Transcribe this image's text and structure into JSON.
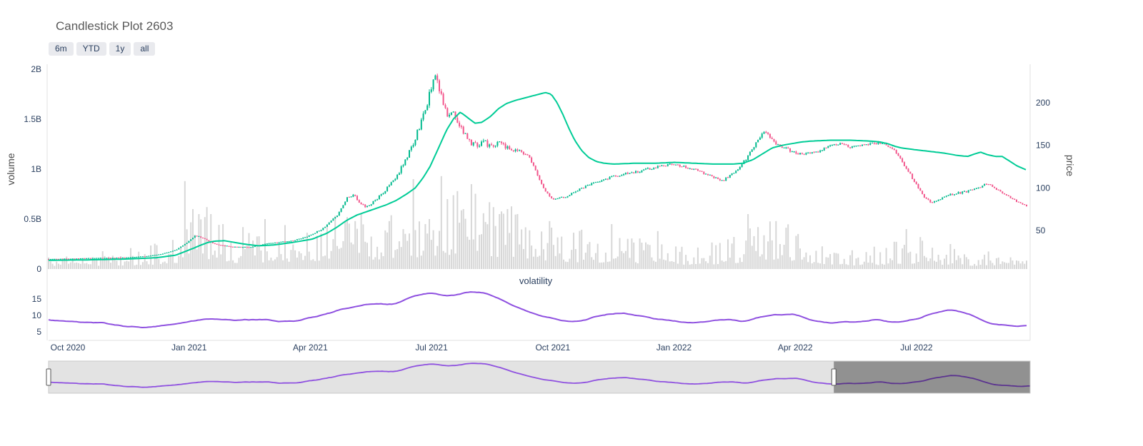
{
  "title": "Candlestick Plot 2603",
  "range_buttons": [
    {
      "label": "6m"
    },
    {
      "label": "YTD"
    },
    {
      "label": "1y"
    },
    {
      "label": "all"
    }
  ],
  "rangeslider": {
    "mask_from_t": 0.8,
    "handle_positions_t": [
      0,
      0.8
    ]
  },
  "chart_data": {
    "type": "candlestick",
    "title": "Candlestick Plot 2603",
    "x_ticks": [
      "Oct 2020",
      "Jan 2021",
      "Apr 2021",
      "Jul 2021",
      "Oct 2021",
      "Jan 2022",
      "Apr 2022",
      "Jul 2022"
    ],
    "volume_axis": {
      "label": "volume",
      "ticks": [
        "0",
        "0.5B",
        "1B",
        "1.5B",
        "2B"
      ],
      "values": [
        0,
        0.5,
        1,
        1.5,
        2
      ]
    },
    "price_axis": {
      "label": "price",
      "ticks": [
        "50",
        "100",
        "150",
        "200"
      ],
      "values": [
        50,
        100,
        150,
        200
      ]
    },
    "volatility_panel": {
      "title": "volatility",
      "ticks": [
        "5",
        "10",
        "15"
      ],
      "values": [
        5,
        10,
        15
      ],
      "range": [
        4,
        18
      ]
    },
    "series": {
      "candle_count": 489,
      "noise_seed": 11,
      "close_keypoints": [
        [
          0,
          16
        ],
        [
          0.02,
          16.5
        ],
        [
          0.04,
          17
        ],
        [
          0.06,
          17.5
        ],
        [
          0.08,
          18
        ],
        [
          0.1,
          19.5
        ],
        [
          0.115,
          22
        ],
        [
          0.13,
          27
        ],
        [
          0.142,
          36
        ],
        [
          0.15,
          44
        ],
        [
          0.158,
          41
        ],
        [
          0.168,
          35
        ],
        [
          0.178,
          32
        ],
        [
          0.19,
          30.5
        ],
        [
          0.205,
          30
        ],
        [
          0.22,
          34
        ],
        [
          0.235,
          36
        ],
        [
          0.25,
          38
        ],
        [
          0.265,
          43
        ],
        [
          0.28,
          52
        ],
        [
          0.295,
          68
        ],
        [
          0.305,
          88
        ],
        [
          0.312,
          92
        ],
        [
          0.318,
          82
        ],
        [
          0.325,
          78
        ],
        [
          0.335,
          86
        ],
        [
          0.345,
          98
        ],
        [
          0.355,
          112
        ],
        [
          0.365,
          132
        ],
        [
          0.375,
          158
        ],
        [
          0.385,
          192
        ],
        [
          0.392,
          220
        ],
        [
          0.396,
          230
        ],
        [
          0.401,
          212
        ],
        [
          0.405,
          196
        ],
        [
          0.409,
          184
        ],
        [
          0.414,
          190
        ],
        [
          0.421,
          172
        ],
        [
          0.428,
          158
        ],
        [
          0.435,
          150
        ],
        [
          0.443,
          154
        ],
        [
          0.452,
          150
        ],
        [
          0.462,
          152
        ],
        [
          0.472,
          146
        ],
        [
          0.482,
          143
        ],
        [
          0.49,
          138
        ],
        [
          0.498,
          120
        ],
        [
          0.506,
          100
        ],
        [
          0.515,
          86
        ],
        [
          0.522,
          88
        ],
        [
          0.53,
          90
        ],
        [
          0.54,
          97
        ],
        [
          0.55,
          102
        ],
        [
          0.562,
          108
        ],
        [
          0.575,
          112
        ],
        [
          0.59,
          117
        ],
        [
          0.605,
          120
        ],
        [
          0.62,
          124
        ],
        [
          0.635,
          127
        ],
        [
          0.65,
          125
        ],
        [
          0.662,
          121
        ],
        [
          0.672,
          116
        ],
        [
          0.682,
          112
        ],
        [
          0.688,
          108
        ],
        [
          0.695,
          113
        ],
        [
          0.703,
          120
        ],
        [
          0.712,
          132
        ],
        [
          0.722,
          150
        ],
        [
          0.729,
          164
        ],
        [
          0.733,
          168
        ],
        [
          0.738,
          158
        ],
        [
          0.744,
          150
        ],
        [
          0.75,
          148
        ],
        [
          0.76,
          143
        ],
        [
          0.77,
          139
        ],
        [
          0.78,
          141
        ],
        [
          0.79,
          144
        ],
        [
          0.8,
          150
        ],
        [
          0.81,
          152
        ],
        [
          0.82,
          148
        ],
        [
          0.83,
          150
        ],
        [
          0.84,
          151
        ],
        [
          0.85,
          153
        ],
        [
          0.858,
          150
        ],
        [
          0.865,
          144
        ],
        [
          0.872,
          132
        ],
        [
          0.88,
          118
        ],
        [
          0.888,
          102
        ],
        [
          0.895,
          90
        ],
        [
          0.902,
          83
        ],
        [
          0.91,
          86
        ],
        [
          0.92,
          92
        ],
        [
          0.93,
          94
        ],
        [
          0.94,
          96
        ],
        [
          0.95,
          99
        ],
        [
          0.957,
          104
        ],
        [
          0.963,
          103
        ],
        [
          0.97,
          98
        ],
        [
          0.977,
          93
        ],
        [
          0.984,
          88
        ],
        [
          0.99,
          84
        ],
        [
          1,
          79
        ]
      ],
      "ma_keypoints": [
        [
          0,
          15
        ],
        [
          0.04,
          15.5
        ],
        [
          0.08,
          16.5
        ],
        [
          0.11,
          18
        ],
        [
          0.13,
          21
        ],
        [
          0.15,
          30
        ],
        [
          0.156,
          33
        ],
        [
          0.163,
          36
        ],
        [
          0.17,
          37.5
        ],
        [
          0.18,
          38
        ],
        [
          0.19,
          36
        ],
        [
          0.2,
          34
        ],
        [
          0.215,
          32
        ],
        [
          0.23,
          33
        ],
        [
          0.25,
          36
        ],
        [
          0.27,
          40
        ],
        [
          0.285,
          47
        ],
        [
          0.295,
          54
        ],
        [
          0.305,
          62
        ],
        [
          0.315,
          68
        ],
        [
          0.325,
          72
        ],
        [
          0.335,
          76
        ],
        [
          0.345,
          80
        ],
        [
          0.355,
          85
        ],
        [
          0.365,
          92
        ],
        [
          0.375,
          100
        ],
        [
          0.383,
          112
        ],
        [
          0.39,
          125
        ],
        [
          0.398,
          145
        ],
        [
          0.407,
          168
        ],
        [
          0.414,
          181
        ],
        [
          0.421,
          189
        ],
        [
          0.428,
          183
        ],
        [
          0.436,
          176
        ],
        [
          0.443,
          177
        ],
        [
          0.452,
          184
        ],
        [
          0.46,
          193
        ],
        [
          0.468,
          199
        ],
        [
          0.478,
          203
        ],
        [
          0.488,
          206
        ],
        [
          0.498,
          209
        ],
        [
          0.508,
          212
        ],
        [
          0.514,
          210
        ],
        [
          0.52,
          200
        ],
        [
          0.526,
          186
        ],
        [
          0.532,
          170
        ],
        [
          0.538,
          156
        ],
        [
          0.545,
          144
        ],
        [
          0.552,
          136
        ],
        [
          0.56,
          131
        ],
        [
          0.568,
          129
        ],
        [
          0.578,
          128
        ],
        [
          0.6,
          129
        ],
        [
          0.62,
          129
        ],
        [
          0.64,
          130
        ],
        [
          0.66,
          129
        ],
        [
          0.68,
          128
        ],
        [
          0.7,
          128
        ],
        [
          0.71,
          129
        ],
        [
          0.72,
          133
        ],
        [
          0.73,
          140
        ],
        [
          0.74,
          147
        ],
        [
          0.75,
          150
        ],
        [
          0.76,
          152
        ],
        [
          0.77,
          154
        ],
        [
          0.78,
          155
        ],
        [
          0.8,
          156
        ],
        [
          0.82,
          156
        ],
        [
          0.84,
          155
        ],
        [
          0.85,
          154
        ],
        [
          0.858,
          152
        ],
        [
          0.865,
          149
        ],
        [
          0.872,
          147
        ],
        [
          0.885,
          145
        ],
        [
          0.9,
          143
        ],
        [
          0.915,
          141
        ],
        [
          0.93,
          138
        ],
        [
          0.94,
          137
        ],
        [
          0.947,
          140
        ],
        [
          0.953,
          142
        ],
        [
          0.96,
          139
        ],
        [
          0.968,
          137
        ],
        [
          0.975,
          137
        ],
        [
          0.982,
          132
        ],
        [
          0.99,
          126
        ],
        [
          1,
          121
        ]
      ],
      "volatility_keypoints": [
        [
          0,
          8.5
        ],
        [
          0.03,
          8.2
        ],
        [
          0.055,
          7.7
        ],
        [
          0.075,
          6.9
        ],
        [
          0.095,
          6.3
        ],
        [
          0.115,
          6.8
        ],
        [
          0.135,
          7.6
        ],
        [
          0.15,
          8.5
        ],
        [
          0.162,
          8.9
        ],
        [
          0.175,
          8.8
        ],
        [
          0.19,
          8.5
        ],
        [
          0.205,
          8.8
        ],
        [
          0.22,
          8.6
        ],
        [
          0.24,
          8.2
        ],
        [
          0.255,
          8.5
        ],
        [
          0.27,
          9.4
        ],
        [
          0.285,
          10.5
        ],
        [
          0.3,
          11.8
        ],
        [
          0.312,
          12.6
        ],
        [
          0.325,
          13.2
        ],
        [
          0.338,
          13.6
        ],
        [
          0.35,
          13.2
        ],
        [
          0.358,
          14
        ],
        [
          0.368,
          15.2
        ],
        [
          0.378,
          16.2
        ],
        [
          0.388,
          16.7
        ],
        [
          0.398,
          16.4
        ],
        [
          0.406,
          15.9
        ],
        [
          0.416,
          16.3
        ],
        [
          0.427,
          17
        ],
        [
          0.437,
          17.3
        ],
        [
          0.447,
          16.8
        ],
        [
          0.458,
          15.4
        ],
        [
          0.47,
          13.8
        ],
        [
          0.482,
          12.2
        ],
        [
          0.494,
          10.8
        ],
        [
          0.505,
          9.8
        ],
        [
          0.515,
          9
        ],
        [
          0.525,
          8.4
        ],
        [
          0.535,
          8.1
        ],
        [
          0.545,
          8.4
        ],
        [
          0.555,
          9.2
        ],
        [
          0.565,
          10
        ],
        [
          0.575,
          10.5
        ],
        [
          0.585,
          10.6
        ],
        [
          0.595,
          10.3
        ],
        [
          0.607,
          9.8
        ],
        [
          0.62,
          9.1
        ],
        [
          0.633,
          8.5
        ],
        [
          0.645,
          8.1
        ],
        [
          0.655,
          7.9
        ],
        [
          0.665,
          8
        ],
        [
          0.675,
          8.2
        ],
        [
          0.683,
          8.6
        ],
        [
          0.69,
          8.8
        ],
        [
          0.7,
          8.5
        ],
        [
          0.71,
          8.2
        ],
        [
          0.72,
          8.8
        ],
        [
          0.729,
          9.6
        ],
        [
          0.737,
          10
        ],
        [
          0.745,
          10.4
        ],
        [
          0.752,
          10.1
        ],
        [
          0.758,
          10.5
        ],
        [
          0.765,
          10.2
        ],
        [
          0.772,
          9.4
        ],
        [
          0.78,
          8.6
        ],
        [
          0.787,
          8.1
        ],
        [
          0.795,
          7.9
        ],
        [
          0.805,
          7.8
        ],
        [
          0.815,
          8
        ],
        [
          0.825,
          8.1
        ],
        [
          0.835,
          8.3
        ],
        [
          0.846,
          8.7
        ],
        [
          0.855,
          8.3
        ],
        [
          0.862,
          8
        ],
        [
          0.87,
          7.9
        ],
        [
          0.88,
          8.3
        ],
        [
          0.89,
          9.2
        ],
        [
          0.9,
          10.2
        ],
        [
          0.91,
          11
        ],
        [
          0.922,
          11.7
        ],
        [
          0.93,
          11.3
        ],
        [
          0.94,
          10.4
        ],
        [
          0.95,
          9.2
        ],
        [
          0.958,
          8
        ],
        [
          0.965,
          7.3
        ],
        [
          0.972,
          7
        ],
        [
          0.98,
          6.8
        ],
        [
          0.99,
          6.7
        ],
        [
          1,
          6.9
        ]
      ],
      "volume_base_keypoints": [
        [
          0,
          0.08
        ],
        [
          0.05,
          0.1
        ],
        [
          0.1,
          0.13
        ],
        [
          0.13,
          0.18
        ],
        [
          0.15,
          0.3
        ],
        [
          0.17,
          0.3
        ],
        [
          0.19,
          0.2
        ],
        [
          0.22,
          0.22
        ],
        [
          0.25,
          0.24
        ],
        [
          0.28,
          0.28
        ],
        [
          0.31,
          0.34
        ],
        [
          0.34,
          0.3
        ],
        [
          0.37,
          0.34
        ],
        [
          0.4,
          0.44
        ],
        [
          0.43,
          0.44
        ],
        [
          0.46,
          0.4
        ],
        [
          0.49,
          0.3
        ],
        [
          0.52,
          0.24
        ],
        [
          0.55,
          0.22
        ],
        [
          0.58,
          0.2
        ],
        [
          0.61,
          0.17
        ],
        [
          0.64,
          0.15
        ],
        [
          0.67,
          0.14
        ],
        [
          0.7,
          0.18
        ],
        [
          0.72,
          0.26
        ],
        [
          0.74,
          0.3
        ],
        [
          0.76,
          0.24
        ],
        [
          0.79,
          0.15
        ],
        [
          0.82,
          0.12
        ],
        [
          0.85,
          0.13
        ],
        [
          0.87,
          0.17
        ],
        [
          0.89,
          0.18
        ],
        [
          0.91,
          0.13
        ],
        [
          0.94,
          0.11
        ],
        [
          0.97,
          0.1
        ],
        [
          1,
          0.09
        ]
      ],
      "volume_spikes": [
        [
          0.139,
          0.88
        ],
        [
          0.148,
          0.6
        ],
        [
          0.153,
          0.55
        ],
        [
          0.161,
          0.62
        ],
        [
          0.167,
          0.55
        ],
        [
          0.178,
          0.45
        ],
        [
          0.199,
          0.42
        ],
        [
          0.221,
          0.5
        ],
        [
          0.241,
          0.44
        ],
        [
          0.306,
          0.52
        ],
        [
          0.313,
          0.48
        ],
        [
          0.319,
          0.55
        ],
        [
          0.348,
          0.48
        ],
        [
          0.373,
          0.9
        ],
        [
          0.389,
          0.5
        ],
        [
          0.402,
          0.93
        ],
        [
          0.408,
          0.7
        ],
        [
          0.418,
          0.78
        ],
        [
          0.424,
          0.6
        ],
        [
          0.432,
          0.85
        ],
        [
          0.454,
          0.62
        ],
        [
          0.462,
          0.55
        ],
        [
          0.47,
          0.6
        ],
        [
          0.48,
          0.55
        ],
        [
          0.513,
          0.48
        ],
        [
          0.575,
          0.45
        ],
        [
          0.622,
          0.38
        ],
        [
          0.715,
          0.55
        ],
        [
          0.725,
          0.42
        ],
        [
          0.743,
          0.48
        ],
        [
          0.878,
          0.4
        ],
        [
          0.891,
          0.32
        ],
        [
          0.922,
          0.25
        ]
      ]
    },
    "colors": {
      "increasing": "#00b98d",
      "decreasing": "#f2568c",
      "ma_line": "#00cc96",
      "volume": "#d7d7d7",
      "volatility": "#8f51e0",
      "axis_line": "#e2e2e2",
      "tick_text": "#2a3f5f",
      "axis_title_text": "#4a4a4a",
      "title_text": "#595959",
      "button_bg": "#e9eaee",
      "button_text": "#2a3f5f",
      "slider_bg": "#e3e3e3",
      "slider_mask": "rgba(0,0,0,0.36)",
      "slider_border": "#c9c9c9",
      "handle_fill": "#ffffff",
      "handle_border": "#555555"
    }
  }
}
